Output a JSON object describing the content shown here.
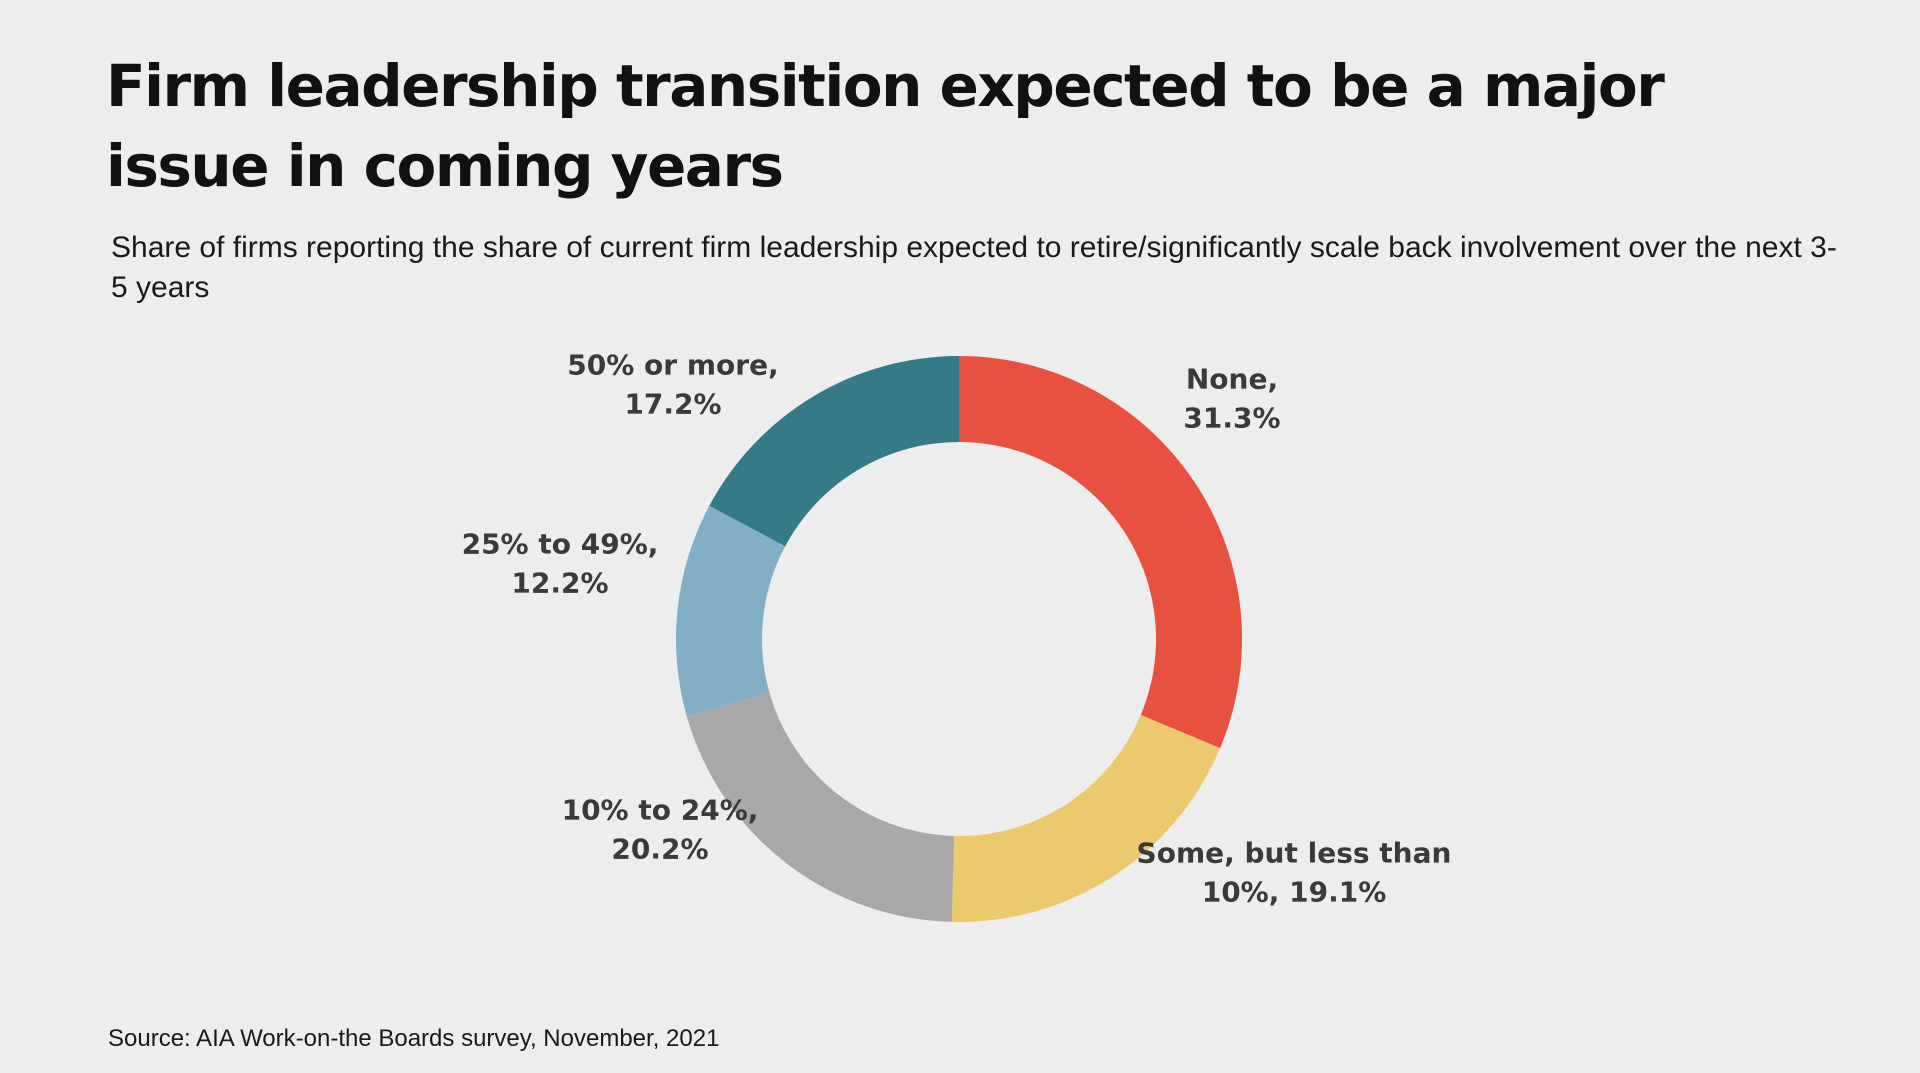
{
  "title": "Firm leadership transition expected to be a major issue in coming years",
  "subtitle": "Share of firms reporting the share of current firm leadership expected to retire/significantly scale back involvement over the next 3-5 years",
  "source": "Source: AIA Work-on-the Boards survey, November, 2021",
  "chart_data": {
    "type": "pie",
    "variant": "donut",
    "start": "top, clockwise",
    "slices": [
      {
        "category": "None",
        "value": 31.3,
        "value_label": "31.3%",
        "color": "#e85140",
        "label_lines": [
          "None,",
          "31.3%"
        ]
      },
      {
        "category": "Some, but less than 10%",
        "value": 19.1,
        "value_label": "19.1%",
        "color": "#ecc96c",
        "label_lines": [
          "Some, but less than",
          "10%, 19.1%"
        ]
      },
      {
        "category": "10% to 24%",
        "value": 20.2,
        "value_label": "20.2%",
        "color": "#a8a8a8",
        "label_lines": [
          "10% to 24%,",
          "20.2%"
        ]
      },
      {
        "category": "25% to 49%",
        "value": 12.2,
        "value_label": "12.2%",
        "color": "#82aec6",
        "label_lines": [
          "25% to 49%,",
          "12.2%"
        ]
      },
      {
        "category": "50% or more",
        "value": 17.2,
        "value_label": "17.2%",
        "color": "#357b87",
        "label_lines": [
          "50% or more,",
          "17.2%"
        ]
      }
    ]
  }
}
